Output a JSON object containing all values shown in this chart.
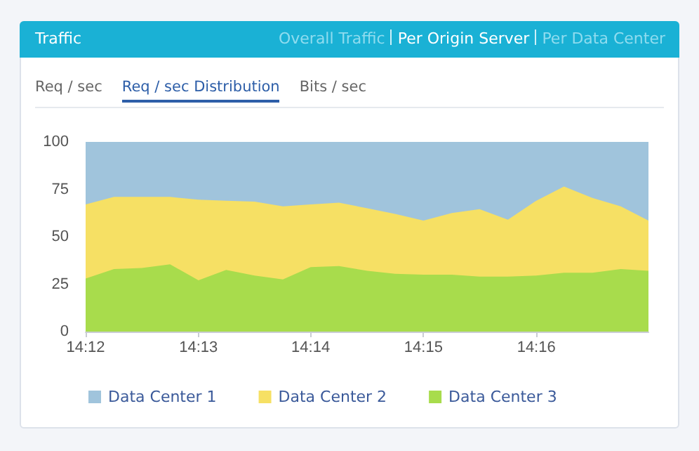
{
  "chart_data": {
    "type": "area",
    "title": "Traffic",
    "annotations": [
      "Overall Traffic",
      "Per Origin Server",
      "Per Data Center",
      "Req / sec",
      "Req / sec Distribution",
      "Bits / sec"
    ],
    "stacked": true,
    "x": [
      14.2,
      14.2042,
      14.2083,
      14.2125,
      14.2167,
      14.2208,
      14.225,
      14.2292,
      14.2333,
      14.2375,
      14.2417,
      14.2458,
      14.25,
      14.2542,
      14.2583,
      14.2625,
      14.2667,
      14.2708,
      14.275,
      14.2792,
      14.2833
    ],
    "series": [
      {
        "name": "Data Center 3",
        "color": "#a8dc4c",
        "values": [
          28,
          33,
          33.5,
          35.5,
          27,
          32.5,
          29.5,
          27.5,
          34,
          34.5,
          32,
          30.5,
          30,
          30,
          29,
          29,
          29.5,
          31,
          31,
          33,
          32
        ]
      },
      {
        "name": "Data Center 2",
        "color": "#f6e064",
        "values": [
          39,
          38,
          37.5,
          35.5,
          42.5,
          36.5,
          39,
          38.5,
          33,
          33.5,
          33,
          31.5,
          28.5,
          32.5,
          35.5,
          30,
          39.5,
          45.5,
          39.5,
          33,
          26.5
        ]
      },
      {
        "name": "Data Center 1",
        "color": "#a0c4dc",
        "values": [
          33,
          29,
          29,
          29,
          30.5,
          31,
          31.5,
          34,
          33,
          32,
          35,
          38,
          41.5,
          37.5,
          35.5,
          41,
          31,
          23.5,
          29.5,
          34,
          41.5
        ]
      }
    ],
    "xlim": [
      14.2,
      14.2833
    ],
    "xticks": [
      {
        "value": 14.2,
        "label": "14:12"
      },
      {
        "value": 14.2167,
        "label": "14:13"
      },
      {
        "value": 14.2333,
        "label": "14:14"
      },
      {
        "value": 14.25,
        "label": "14:15"
      },
      {
        "value": 14.2667,
        "label": "14:16"
      }
    ],
    "ylim": [
      0,
      100
    ],
    "yticks": [
      0,
      25,
      50,
      75,
      100
    ],
    "legend": "bottom left"
  }
}
